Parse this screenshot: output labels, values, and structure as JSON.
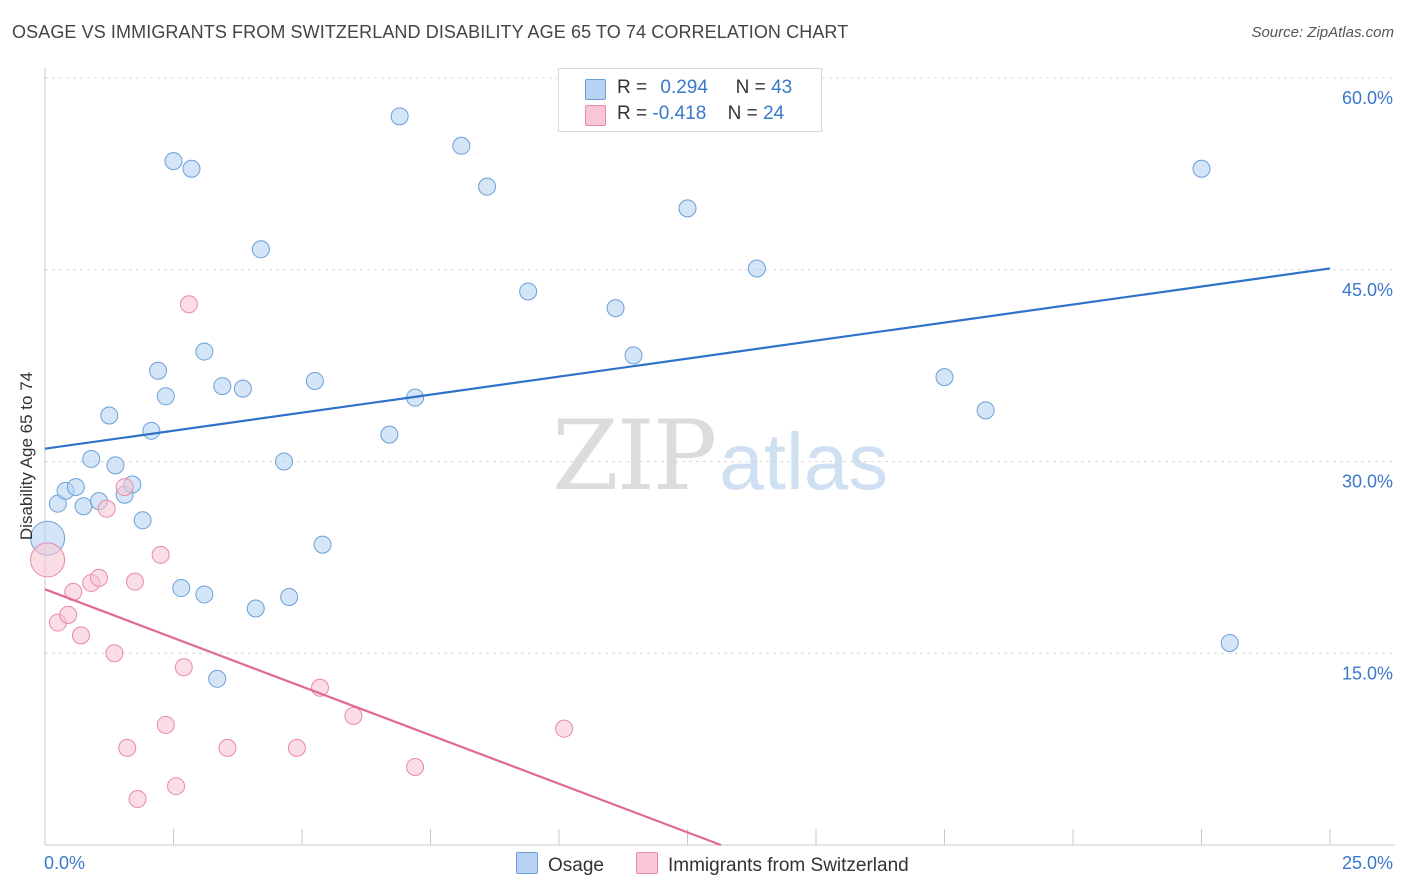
{
  "title": "OSAGE VS IMMIGRANTS FROM SWITZERLAND DISABILITY AGE 65 TO 74 CORRELATION CHART",
  "source": "Source: ZipAtlas.com",
  "watermark": {
    "zip": "ZIP",
    "atlas": "atlas"
  },
  "legend": {
    "rows": [
      {
        "r_label": "R =",
        "r_value": "0.294",
        "n_label": "N =",
        "n_value": "43",
        "color": "#b8d3f4",
        "border": "#6c9fd8"
      },
      {
        "r_label": "R =",
        "r_value": "-0.418",
        "n_label": "N =",
        "n_value": "24",
        "color": "#f9c6d6",
        "border": "#e88aa9"
      }
    ]
  },
  "bottom_legend": [
    {
      "label": "Osage",
      "color": "#b8d3f4",
      "border": "#6c9fd8"
    },
    {
      "label": "Immigrants from Switzerland",
      "color": "#f9c6d6",
      "border": "#e88aa9"
    }
  ],
  "chart_data": {
    "type": "scatter",
    "title": "OSAGE VS IMMIGRANTS FROM SWITZERLAND DISABILITY AGE 65 TO 74 CORRELATION CHART",
    "xlabel": "",
    "ylabel": "Disability Age 65 to 74",
    "xlim": [
      0,
      25
    ],
    "ylim": [
      0,
      60
    ],
    "x_ticks": [
      "0.0%",
      "25.0%"
    ],
    "y_ticks": [
      {
        "value": 15,
        "label": "15.0%"
      },
      {
        "value": 30,
        "label": "30.0%"
      },
      {
        "value": 45,
        "label": "45.0%"
      },
      {
        "value": 60,
        "label": "60.0%"
      }
    ],
    "grid": true,
    "series": [
      {
        "name": "Osage",
        "color": "#b8d3f4",
        "stroke": "#6c9fd8",
        "trend_color": "#2f73c9",
        "trend": {
          "x": [
            0,
            25
          ],
          "y": [
            31.0,
            45.1
          ]
        },
        "points": [
          {
            "x": 0.05,
            "y": 24.0,
            "big": true
          },
          {
            "x": 0.25,
            "y": 26.7
          },
          {
            "x": 0.4,
            "y": 27.7
          },
          {
            "x": 0.6,
            "y": 28.0
          },
          {
            "x": 0.75,
            "y": 26.5
          },
          {
            "x": 0.9,
            "y": 30.2
          },
          {
            "x": 1.05,
            "y": 26.9
          },
          {
            "x": 1.25,
            "y": 33.6
          },
          {
            "x": 1.37,
            "y": 29.7
          },
          {
            "x": 1.55,
            "y": 27.4
          },
          {
            "x": 1.7,
            "y": 28.2
          },
          {
            "x": 1.9,
            "y": 25.4
          },
          {
            "x": 2.07,
            "y": 32.4
          },
          {
            "x": 2.2,
            "y": 37.1
          },
          {
            "x": 2.35,
            "y": 35.1
          },
          {
            "x": 2.5,
            "y": 53.5
          },
          {
            "x": 2.65,
            "y": 20.1
          },
          {
            "x": 2.85,
            "y": 52.9
          },
          {
            "x": 3.1,
            "y": 19.6
          },
          {
            "x": 3.1,
            "y": 38.6
          },
          {
            "x": 3.35,
            "y": 13.0
          },
          {
            "x": 3.45,
            "y": 35.9
          },
          {
            "x": 3.85,
            "y": 35.7
          },
          {
            "x": 4.1,
            "y": 18.5
          },
          {
            "x": 4.2,
            "y": 46.6
          },
          {
            "x": 4.65,
            "y": 30.0
          },
          {
            "x": 4.75,
            "y": 19.4
          },
          {
            "x": 5.25,
            "y": 36.3
          },
          {
            "x": 5.4,
            "y": 23.5
          },
          {
            "x": 6.7,
            "y": 32.1
          },
          {
            "x": 6.9,
            "y": 57.0
          },
          {
            "x": 7.2,
            "y": 35.0
          },
          {
            "x": 8.1,
            "y": 54.7
          },
          {
            "x": 8.6,
            "y": 51.5
          },
          {
            "x": 9.4,
            "y": 43.3
          },
          {
            "x": 11.1,
            "y": 42.0
          },
          {
            "x": 11.45,
            "y": 38.3
          },
          {
            "x": 12.5,
            "y": 49.8
          },
          {
            "x": 13.85,
            "y": 45.1
          },
          {
            "x": 17.5,
            "y": 36.6
          },
          {
            "x": 18.3,
            "y": 34.0
          },
          {
            "x": 22.5,
            "y": 52.9
          },
          {
            "x": 23.05,
            "y": 15.8
          }
        ]
      },
      {
        "name": "Immigrants from Switzerland",
        "color": "#f9c6d6",
        "stroke": "#e88aa9",
        "trend_color": "#e0698f",
        "trend": {
          "x": [
            0,
            13.15
          ],
          "y": [
            20.0,
            0.0
          ]
        },
        "points": [
          {
            "x": 0.05,
            "y": 22.3,
            "big": true
          },
          {
            "x": 0.25,
            "y": 17.4
          },
          {
            "x": 0.45,
            "y": 18.0
          },
          {
            "x": 0.55,
            "y": 19.8
          },
          {
            "x": 0.7,
            "y": 16.4
          },
          {
            "x": 0.9,
            "y": 20.5
          },
          {
            "x": 1.05,
            "y": 20.9
          },
          {
            "x": 1.2,
            "y": 26.3
          },
          {
            "x": 1.35,
            "y": 15.0
          },
          {
            "x": 1.55,
            "y": 28.0
          },
          {
            "x": 1.6,
            "y": 7.6
          },
          {
            "x": 1.75,
            "y": 20.6
          },
          {
            "x": 1.8,
            "y": 3.6
          },
          {
            "x": 2.25,
            "y": 22.7
          },
          {
            "x": 2.35,
            "y": 9.4
          },
          {
            "x": 2.55,
            "y": 4.6
          },
          {
            "x": 2.7,
            "y": 13.9
          },
          {
            "x": 2.8,
            "y": 42.3
          },
          {
            "x": 3.55,
            "y": 7.6
          },
          {
            "x": 4.9,
            "y": 7.6
          },
          {
            "x": 5.35,
            "y": 12.3
          },
          {
            "x": 6.0,
            "y": 10.1
          },
          {
            "x": 7.2,
            "y": 6.1
          },
          {
            "x": 10.1,
            "y": 9.1
          }
        ]
      }
    ]
  }
}
